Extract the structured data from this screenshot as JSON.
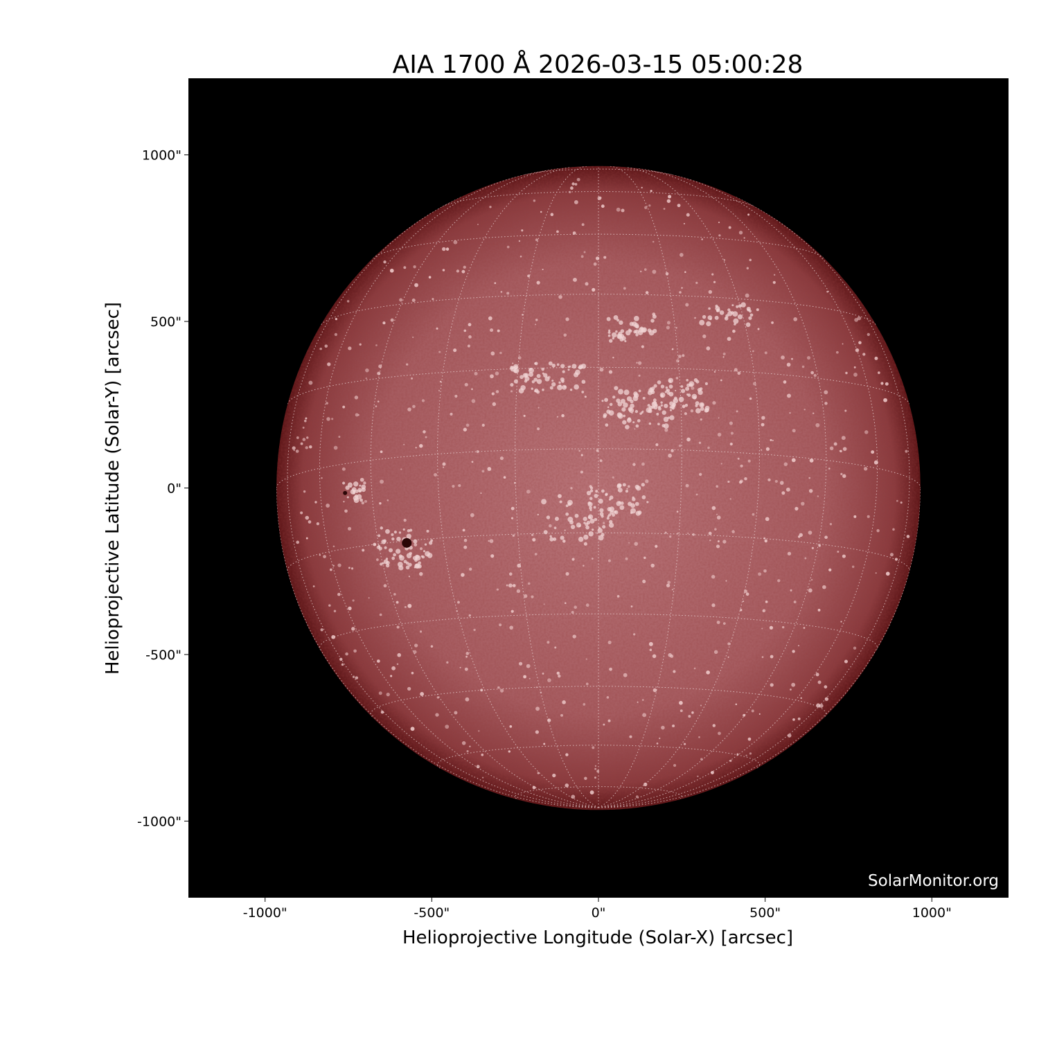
{
  "chart_data": {
    "type": "image",
    "title": "AIA 1700 Å 2026-03-15 05:00:28",
    "xlabel": "Helioprojective Longitude (Solar-X) [arcsec]",
    "ylabel": "Helioprojective Latitude (Solar-Y) [arcsec]",
    "xlim": [
      -1230,
      1230
    ],
    "ylim": [
      -1230,
      1230
    ],
    "xticks": [
      {
        "value": -1000,
        "label": "-1000\""
      },
      {
        "value": -500,
        "label": "-500\""
      },
      {
        "value": 0,
        "label": "0\""
      },
      {
        "value": 500,
        "label": "500\""
      },
      {
        "value": 1000,
        "label": "1000\""
      }
    ],
    "yticks": [
      {
        "value": 1000,
        "label": "1000\""
      },
      {
        "value": 500,
        "label": "500\""
      },
      {
        "value": 0,
        "label": "0\""
      },
      {
        "value": -500,
        "label": "-500\""
      },
      {
        "value": -1000,
        "label": "-1000\""
      }
    ],
    "solar_radius_arcsec": 966,
    "grid": "heliographic, 15° spacing, dotted white",
    "colors": {
      "background": "#000000",
      "disk_center": "#b87478",
      "disk_limb": "#5e1618",
      "plage": "#f2d6d6",
      "sunspot": "#2a0606"
    },
    "sunspots": [
      {
        "x": -575,
        "y": -165
      },
      {
        "x": -760,
        "y": -15
      }
    ],
    "watermark": "SolarMonitor.org"
  }
}
